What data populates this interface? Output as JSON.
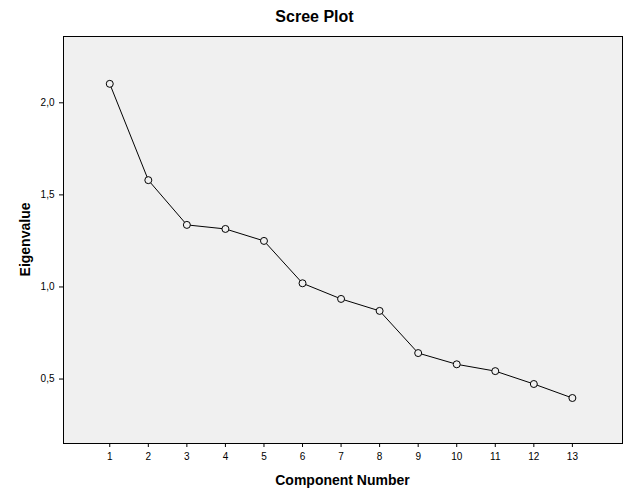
{
  "chart_data": {
    "type": "line",
    "title": "Scree Plot",
    "x_label": "Component Number",
    "y_label": "Eigenvalue",
    "x": [
      1,
      2,
      3,
      4,
      5,
      6,
      7,
      8,
      9,
      10,
      11,
      12,
      13
    ],
    "values": [
      2.103,
      1.58,
      1.337,
      1.315,
      1.25,
      1.02,
      0.935,
      0.87,
      0.641,
      0.58,
      0.543,
      0.473,
      0.397
    ],
    "color": "#000000",
    "marker": "circle",
    "line_style": "solid",
    "xlim": [
      -0.2,
      14.3
    ],
    "xticks": [
      1,
      2,
      3,
      4,
      5,
      6,
      7,
      8,
      9,
      10,
      11,
      12,
      13
    ],
    "ylim": [
      0.15,
      2.36
    ],
    "yticks": [
      {
        "value": 0.5,
        "label": "0,5"
      },
      {
        "value": 1.0,
        "label": "1,0"
      },
      {
        "value": 1.5,
        "label": "1,5"
      },
      {
        "value": 2.0,
        "label": "2,0"
      }
    ],
    "grid": false
  }
}
